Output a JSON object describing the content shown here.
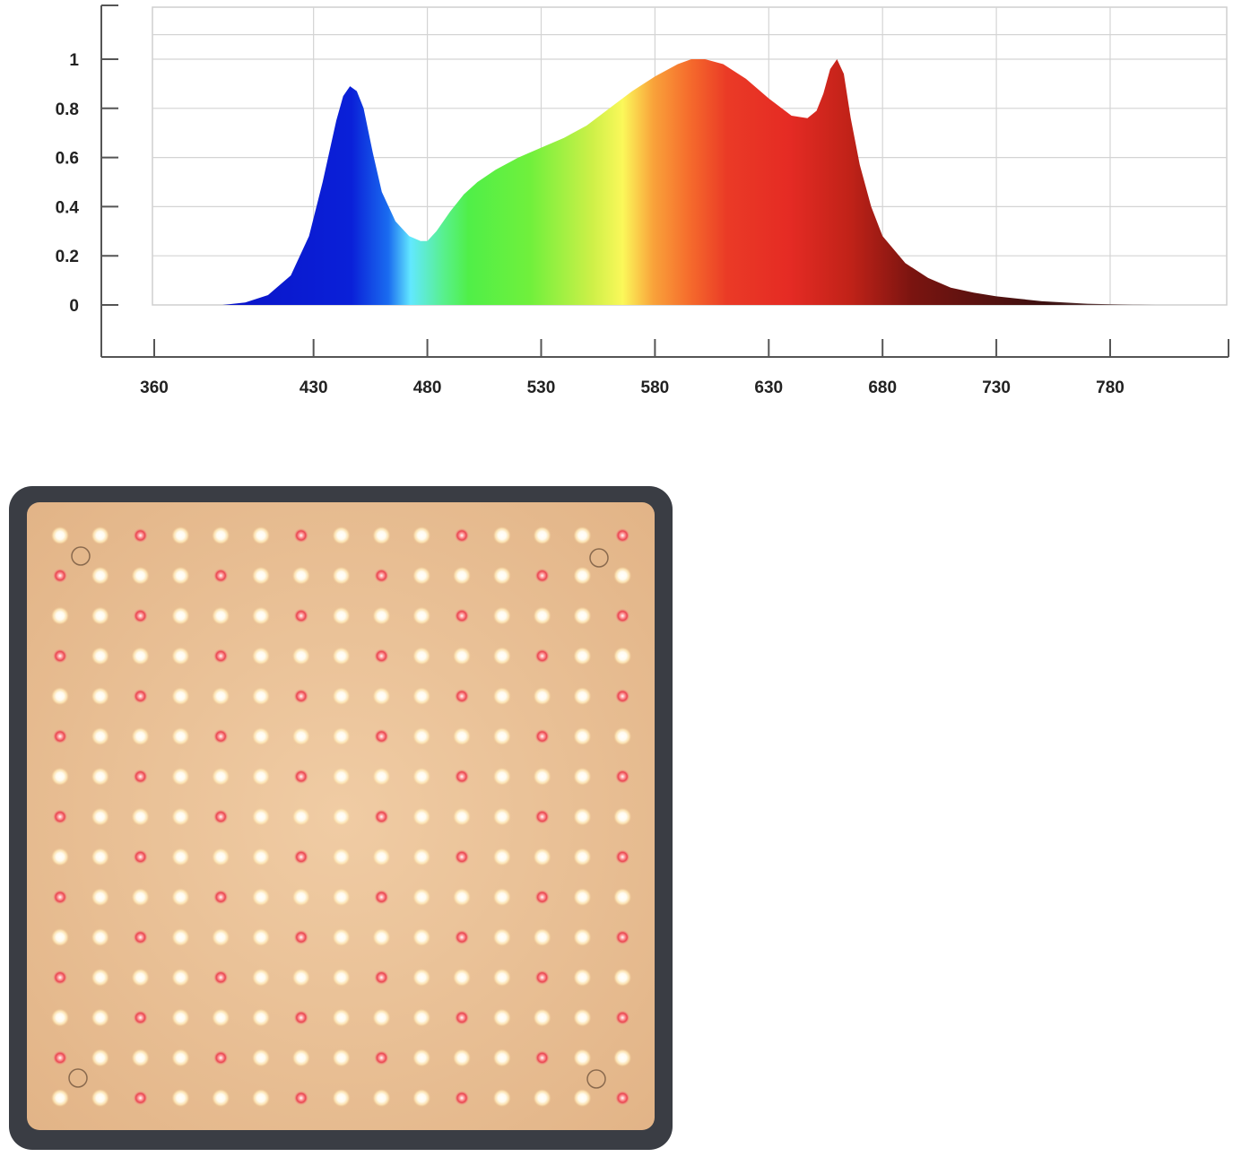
{
  "chart_data": {
    "type": "area",
    "title": "",
    "xlabel": "",
    "ylabel": "",
    "xlim": [
      360,
      825
    ],
    "ylim": [
      0,
      1.2
    ],
    "x_ticks": [
      360,
      430,
      480,
      530,
      580,
      630,
      680,
      730,
      780
    ],
    "y_ticks": [
      0,
      0.2,
      0.4,
      0.6,
      0.8,
      1
    ],
    "x_tick_labels": [
      "360",
      "430",
      "480",
      "530",
      "580",
      "630",
      "680",
      "730",
      "780"
    ],
    "y_tick_labels": [
      "0",
      "0.2",
      "0.4",
      "0.6",
      "0.8",
      "1"
    ],
    "grid": true,
    "legend": "none",
    "fill": "visible-spectrum-gradient",
    "series": [
      {
        "x": [
          390,
          400,
          410,
          420,
          428,
          434,
          440,
          443,
          446,
          449,
          452,
          456,
          460,
          466,
          472,
          477,
          480,
          484,
          490,
          496,
          502,
          510,
          520,
          530,
          540,
          550,
          560,
          570,
          580,
          590,
          596,
          602,
          610,
          620,
          630,
          640,
          647,
          651,
          654,
          657,
          660,
          663,
          666,
          670,
          675,
          680,
          690,
          700,
          710,
          720,
          730,
          740,
          750,
          760,
          770,
          780,
          790,
          800
        ],
        "y": [
          0.0,
          0.01,
          0.04,
          0.12,
          0.28,
          0.5,
          0.75,
          0.85,
          0.89,
          0.87,
          0.8,
          0.62,
          0.46,
          0.34,
          0.28,
          0.26,
          0.26,
          0.3,
          0.38,
          0.45,
          0.5,
          0.55,
          0.6,
          0.64,
          0.68,
          0.73,
          0.8,
          0.87,
          0.93,
          0.98,
          1.0,
          1.0,
          0.98,
          0.92,
          0.84,
          0.77,
          0.76,
          0.79,
          0.86,
          0.96,
          1.0,
          0.94,
          0.76,
          0.57,
          0.4,
          0.28,
          0.17,
          0.11,
          0.07,
          0.05,
          0.035,
          0.025,
          0.015,
          0.01,
          0.005,
          0.003,
          0.001,
          0.0
        ]
      }
    ]
  },
  "led_panel": {
    "rows": 15,
    "cols": 15,
    "red_positions": [
      [
        0,
        2
      ],
      [
        0,
        6
      ],
      [
        0,
        10
      ],
      [
        0,
        14
      ],
      [
        1,
        0
      ],
      [
        1,
        4
      ],
      [
        1,
        8
      ],
      [
        1,
        12
      ],
      [
        2,
        2
      ],
      [
        2,
        6
      ],
      [
        2,
        10
      ],
      [
        2,
        14
      ],
      [
        3,
        0
      ],
      [
        3,
        4
      ],
      [
        3,
        8
      ],
      [
        3,
        12
      ],
      [
        4,
        2
      ],
      [
        4,
        6
      ],
      [
        4,
        10
      ],
      [
        4,
        14
      ],
      [
        5,
        0
      ],
      [
        5,
        4
      ],
      [
        5,
        8
      ],
      [
        5,
        12
      ],
      [
        6,
        2
      ],
      [
        6,
        6
      ],
      [
        6,
        10
      ],
      [
        6,
        14
      ],
      [
        7,
        0
      ],
      [
        7,
        4
      ],
      [
        7,
        8
      ],
      [
        7,
        12
      ],
      [
        8,
        2
      ],
      [
        8,
        6
      ],
      [
        8,
        10
      ],
      [
        8,
        14
      ],
      [
        9,
        0
      ],
      [
        9,
        4
      ],
      [
        9,
        8
      ],
      [
        9,
        12
      ],
      [
        10,
        2
      ],
      [
        10,
        6
      ],
      [
        10,
        10
      ],
      [
        10,
        14
      ],
      [
        11,
        0
      ],
      [
        11,
        4
      ],
      [
        11,
        8
      ],
      [
        11,
        12
      ],
      [
        12,
        2
      ],
      [
        12,
        6
      ],
      [
        12,
        10
      ],
      [
        12,
        14
      ],
      [
        13,
        0
      ],
      [
        13,
        4
      ],
      [
        13,
        8
      ],
      [
        13,
        12
      ],
      [
        14,
        2
      ],
      [
        14,
        6
      ],
      [
        14,
        10
      ],
      [
        14,
        14
      ]
    ],
    "colors": {
      "board": "#e8c29a",
      "frame": "#3a3d44",
      "white_led": "#fff8e8",
      "red_led": "#e8404a"
    }
  }
}
